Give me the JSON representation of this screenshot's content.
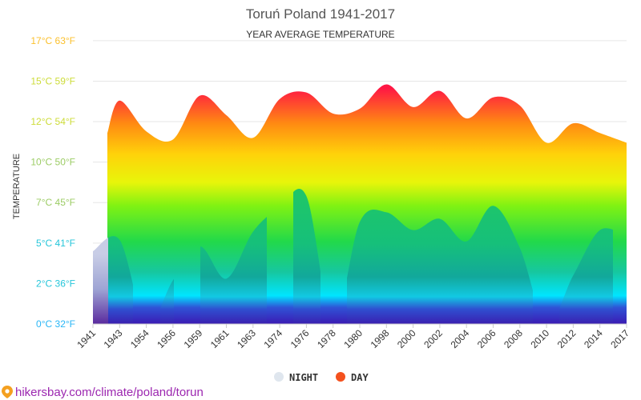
{
  "chart_data": {
    "type": "area",
    "title": "Toruń Poland 1941-2017",
    "subtitle": "YEAR AVERAGE TEMPERATURE",
    "ylabel": "TEMPERATURE",
    "ylim": [
      0,
      17
    ],
    "y_ticks": [
      {
        "value": 0,
        "label": "0°C 32°F",
        "color": "#29b6f6"
      },
      {
        "value": 2.5,
        "label": "2°C 36°F",
        "color": "#26c6da"
      },
      {
        "value": 5,
        "label": "5°C 41°F",
        "color": "#26c6da"
      },
      {
        "value": 7.5,
        "label": "7°C 45°F",
        "color": "#9ccc65"
      },
      {
        "value": 10,
        "label": "10°C 50°F",
        "color": "#9ccc65"
      },
      {
        "value": 12.5,
        "label": "12°C 54°F",
        "color": "#cddc39"
      },
      {
        "value": 15,
        "label": "15°C 59°F",
        "color": "#cddc39"
      },
      {
        "value": 17.5,
        "label": "17°C 63°F",
        "color": "#fbc02d"
      }
    ],
    "categories": [
      "1941",
      "1943",
      "1954",
      "1956",
      "1959",
      "1961",
      "1963",
      "1974",
      "1976",
      "1978",
      "1980",
      "1998",
      "2000",
      "2002",
      "2004",
      "2006",
      "2008",
      "2010",
      "2012",
      "2014",
      "2017"
    ],
    "series": [
      {
        "name": "NIGHT",
        "color": "#dfe6ee",
        "values": [
          4.5,
          5.2,
          0,
          2.7,
          4.8,
          2.8,
          5.7,
          7.2,
          7.9,
          0,
          6.3,
          6.9,
          5.8,
          6.5,
          5.1,
          7.3,
          4.7,
          0,
          3.0,
          5.8,
          5.4
        ]
      },
      {
        "name": "DAY",
        "color": "#f4511e",
        "values": [
          11.8,
          13.8,
          11.9,
          11.4,
          14.1,
          12.9,
          11.5,
          13.9,
          14.3,
          13.0,
          13.3,
          14.8,
          13.4,
          14.4,
          12.7,
          14.0,
          13.5,
          11.2,
          12.4,
          11.8,
          11.2
        ]
      }
    ],
    "legend_position": "bottom-center",
    "grid": true
  },
  "legend": {
    "night_label": "NIGHT",
    "day_label": "DAY"
  },
  "footer": {
    "source_text": "hikersbay.com/climate/poland/torun"
  }
}
